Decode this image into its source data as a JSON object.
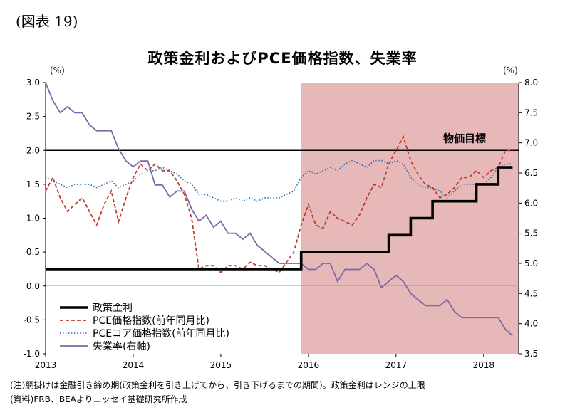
{
  "figure_label": "(図表 19)",
  "chart_data": {
    "type": "line",
    "title": "政策金利およびPCE価格指数、失業率",
    "left_unit": "(%)",
    "right_unit": "(%)",
    "x_ticks": [
      "2013",
      "2014",
      "2015",
      "2016",
      "2017",
      "2018"
    ],
    "x_range": [
      2013.0,
      2018.4
    ],
    "y_left": {
      "range": [
        -1.0,
        3.0
      ],
      "ticks": [
        "3.0",
        "2.5",
        "2.0",
        "1.5",
        "1.0",
        "0.5",
        "0.0",
        "-0.5",
        "-1.0"
      ]
    },
    "y_right": {
      "range": [
        3.5,
        8.0
      ],
      "ticks": [
        "8.0",
        "7.5",
        "7.0",
        "6.5",
        "6.0",
        "5.5",
        "5.0",
        "4.5",
        "4.0",
        "3.5"
      ]
    },
    "shaded_period": [
      2015.917,
      2018.4
    ],
    "target_line": {
      "value": 2.0,
      "label": "物価目標"
    },
    "legend": {
      "policy": "政策金利",
      "pce": "PCE価格指数(前年同月比)",
      "core": "PCEコア価格指数(前年同月比)",
      "unemp": "失業率(右軸)"
    },
    "series": {
      "policy": {
        "axis": "left",
        "color": "#000000",
        "x": [
          2013.0,
          2015.917,
          2015.917,
          2016.917,
          2016.917,
          2017.167,
          2017.167,
          2017.417,
          2017.417,
          2017.917,
          2017.917,
          2018.167,
          2018.167,
          2018.33
        ],
        "y": [
          0.25,
          0.25,
          0.5,
          0.5,
          0.75,
          0.75,
          1.0,
          1.0,
          1.25,
          1.25,
          1.5,
          1.5,
          1.75,
          1.75
        ]
      },
      "pce": {
        "axis": "left",
        "color": "#c0392b",
        "x": [
          2013.0,
          2013.083,
          2013.167,
          2013.25,
          2013.333,
          2013.417,
          2013.5,
          2013.583,
          2013.667,
          2013.75,
          2013.833,
          2013.917,
          2014.0,
          2014.083,
          2014.167,
          2014.25,
          2014.333,
          2014.417,
          2014.5,
          2014.583,
          2014.667,
          2014.75,
          2014.833,
          2014.917,
          2015.0,
          2015.083,
          2015.167,
          2015.25,
          2015.333,
          2015.417,
          2015.5,
          2015.583,
          2015.667,
          2015.75,
          2015.833,
          2015.917,
          2016.0,
          2016.083,
          2016.167,
          2016.25,
          2016.333,
          2016.417,
          2016.5,
          2016.583,
          2016.667,
          2016.75,
          2016.833,
          2016.917,
          2017.0,
          2017.083,
          2017.167,
          2017.25,
          2017.333,
          2017.417,
          2017.5,
          2017.583,
          2017.667,
          2017.75,
          2017.833,
          2017.917,
          2018.0,
          2018.083,
          2018.167,
          2018.25,
          2018.33
        ],
        "y": [
          1.4,
          1.6,
          1.3,
          1.1,
          1.2,
          1.3,
          1.1,
          0.9,
          1.2,
          1.4,
          0.95,
          1.3,
          1.6,
          1.8,
          1.7,
          1.8,
          1.7,
          1.7,
          1.55,
          1.35,
          1.0,
          0.25,
          0.3,
          0.3,
          0.2,
          0.3,
          0.3,
          0.25,
          0.35,
          0.3,
          0.3,
          0.25,
          0.2,
          0.35,
          0.5,
          0.9,
          1.2,
          0.9,
          0.85,
          1.1,
          1.0,
          0.95,
          0.9,
          1.05,
          1.3,
          1.5,
          1.45,
          1.8,
          2.0,
          2.2,
          1.85,
          1.65,
          1.5,
          1.45,
          1.3,
          1.35,
          1.45,
          1.6,
          1.6,
          1.7,
          1.6,
          1.7,
          1.75,
          2.0,
          2.0
        ]
      },
      "core": {
        "axis": "left",
        "color": "#2a6db0",
        "x": [
          2013.0,
          2013.083,
          2013.167,
          2013.25,
          2013.333,
          2013.417,
          2013.5,
          2013.583,
          2013.667,
          2013.75,
          2013.833,
          2013.917,
          2014.0,
          2014.083,
          2014.167,
          2014.25,
          2014.333,
          2014.417,
          2014.5,
          2014.583,
          2014.667,
          2014.75,
          2014.833,
          2014.917,
          2015.0,
          2015.083,
          2015.167,
          2015.25,
          2015.333,
          2015.417,
          2015.5,
          2015.583,
          2015.667,
          2015.75,
          2015.833,
          2015.917,
          2016.0,
          2016.083,
          2016.167,
          2016.25,
          2016.333,
          2016.417,
          2016.5,
          2016.583,
          2016.667,
          2016.75,
          2016.833,
          2016.917,
          2017.0,
          2017.083,
          2017.167,
          2017.25,
          2017.333,
          2017.417,
          2017.5,
          2017.583,
          2017.667,
          2017.75,
          2017.833,
          2017.917,
          2018.0,
          2018.083,
          2018.167,
          2018.25,
          2018.33
        ],
        "y": [
          1.6,
          1.55,
          1.5,
          1.45,
          1.5,
          1.5,
          1.5,
          1.45,
          1.5,
          1.55,
          1.45,
          1.5,
          1.55,
          1.65,
          1.7,
          1.7,
          1.75,
          1.7,
          1.65,
          1.55,
          1.5,
          1.35,
          1.35,
          1.3,
          1.25,
          1.25,
          1.3,
          1.25,
          1.3,
          1.25,
          1.3,
          1.3,
          1.3,
          1.35,
          1.4,
          1.6,
          1.7,
          1.65,
          1.7,
          1.75,
          1.7,
          1.8,
          1.85,
          1.8,
          1.75,
          1.85,
          1.85,
          1.8,
          1.85,
          1.8,
          1.6,
          1.5,
          1.45,
          1.45,
          1.4,
          1.3,
          1.4,
          1.5,
          1.5,
          1.5,
          1.5,
          1.6,
          1.75,
          1.8,
          1.8
        ]
      },
      "unemp": {
        "axis": "right",
        "color": "#7b68a6",
        "x": [
          2013.0,
          2013.083,
          2013.167,
          2013.25,
          2013.333,
          2013.417,
          2013.5,
          2013.583,
          2013.667,
          2013.75,
          2013.833,
          2013.917,
          2014.0,
          2014.083,
          2014.167,
          2014.25,
          2014.333,
          2014.417,
          2014.5,
          2014.583,
          2014.667,
          2014.75,
          2014.833,
          2014.917,
          2015.0,
          2015.083,
          2015.167,
          2015.25,
          2015.333,
          2015.417,
          2015.5,
          2015.583,
          2015.667,
          2015.75,
          2015.833,
          2015.917,
          2016.0,
          2016.083,
          2016.167,
          2016.25,
          2016.333,
          2016.417,
          2016.5,
          2016.583,
          2016.667,
          2016.75,
          2016.833,
          2016.917,
          2017.0,
          2017.083,
          2017.167,
          2017.25,
          2017.333,
          2017.417,
          2017.5,
          2017.583,
          2017.667,
          2017.75,
          2017.833,
          2017.917,
          2018.0,
          2018.083,
          2018.167,
          2018.25,
          2018.33
        ],
        "y": [
          8.0,
          7.7,
          7.5,
          7.6,
          7.5,
          7.5,
          7.3,
          7.2,
          7.2,
          7.2,
          6.9,
          6.7,
          6.6,
          6.7,
          6.7,
          6.3,
          6.3,
          6.1,
          6.2,
          6.2,
          5.9,
          5.7,
          5.8,
          5.6,
          5.7,
          5.5,
          5.5,
          5.4,
          5.5,
          5.3,
          5.2,
          5.1,
          5.0,
          5.0,
          5.0,
          5.0,
          4.9,
          4.9,
          5.0,
          5.0,
          4.7,
          4.9,
          4.9,
          4.9,
          5.0,
          4.9,
          4.6,
          4.7,
          4.8,
          4.7,
          4.5,
          4.4,
          4.3,
          4.3,
          4.3,
          4.4,
          4.2,
          4.1,
          4.1,
          4.1,
          4.1,
          4.1,
          4.1,
          3.9,
          3.8
        ]
      }
    }
  },
  "footnotes": {
    "note": "(注)網掛けは金融引き締め期(政策金利を引き上げてから、引き下げるまでの期間)。政策金利はレンジの上限",
    "source": "(資料)FRB、BEAよりニッセイ基礎研究所作成"
  }
}
